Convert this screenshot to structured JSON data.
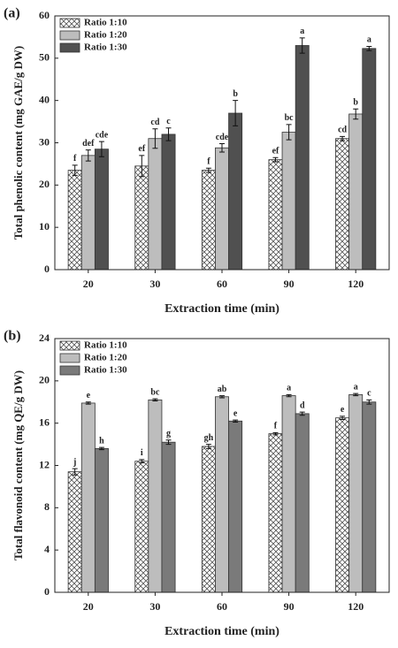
{
  "chart_data": [
    {
      "type": "bar",
      "panel": "(a)",
      "ylabel": "Total phenolic content (mg GAE/g DW)",
      "xlabel": "Extraction time (min)",
      "categories": [
        "20",
        "30",
        "60",
        "90",
        "120"
      ],
      "ylim": [
        0,
        60
      ],
      "yticks": [
        0,
        10,
        20,
        30,
        40,
        50,
        60
      ],
      "legend": "upper left",
      "series": [
        {
          "name": "Ratio 1:10",
          "color": "#ffffff",
          "pattern": "crosshatch",
          "values": [
            23.5,
            24.5,
            23.5,
            26,
            31
          ],
          "errors": [
            1.2,
            2.5,
            0.5,
            0.5,
            0.5
          ],
          "letters": [
            "f",
            "ef",
            "f",
            "ef",
            "cd"
          ]
        },
        {
          "name": "Ratio 1:20",
          "color": "#bdbdbd",
          "values": [
            27,
            31,
            28.8,
            32.5,
            36.8
          ],
          "errors": [
            1.3,
            2.3,
            1,
            1.8,
            1.2
          ],
          "letters": [
            "def",
            "cd",
            "cde",
            "bc",
            "b"
          ]
        },
        {
          "name": "Ratio 1:30",
          "color": "#505050",
          "values": [
            28.5,
            32,
            37,
            53,
            52.3
          ],
          "errors": [
            1.8,
            1.5,
            3,
            1.8,
            0.5
          ],
          "letters": [
            "cde",
            "c",
            "b",
            "a",
            "a"
          ]
        }
      ]
    },
    {
      "type": "bar",
      "panel": "(b)",
      "ylabel": "Total flavonoid content (mg QE/g DW)",
      "xlabel": "Extraction time (min)",
      "categories": [
        "20",
        "30",
        "60",
        "90",
        "120"
      ],
      "ylim": [
        0,
        24
      ],
      "yticks": [
        0,
        4,
        8,
        12,
        16,
        20,
        24
      ],
      "legend": "upper left",
      "series": [
        {
          "name": "Ratio 1:10",
          "color": "#ffffff",
          "pattern": "crosshatch",
          "values": [
            11.4,
            12.4,
            13.8,
            15,
            16.5
          ],
          "errors": [
            0.3,
            0.15,
            0.2,
            0.1,
            0.15
          ],
          "letters": [
            "j",
            "i",
            "gh",
            "f",
            "e"
          ]
        },
        {
          "name": "Ratio 1:20",
          "color": "#bdbdbd",
          "values": [
            17.9,
            18.2,
            18.5,
            18.6,
            18.7
          ],
          "errors": [
            0.1,
            0.1,
            0.1,
            0.1,
            0.1
          ],
          "letters": [
            "e",
            "bc",
            "ab",
            "a",
            "a"
          ]
        },
        {
          "name": "Ratio 1:30",
          "color": "#7a7a7a",
          "values": [
            13.6,
            14.2,
            16.2,
            16.9,
            18
          ],
          "errors": [
            0.1,
            0.2,
            0.1,
            0.15,
            0.2
          ],
          "letters": [
            "h",
            "g",
            "e",
            "d",
            "c"
          ]
        }
      ]
    }
  ]
}
